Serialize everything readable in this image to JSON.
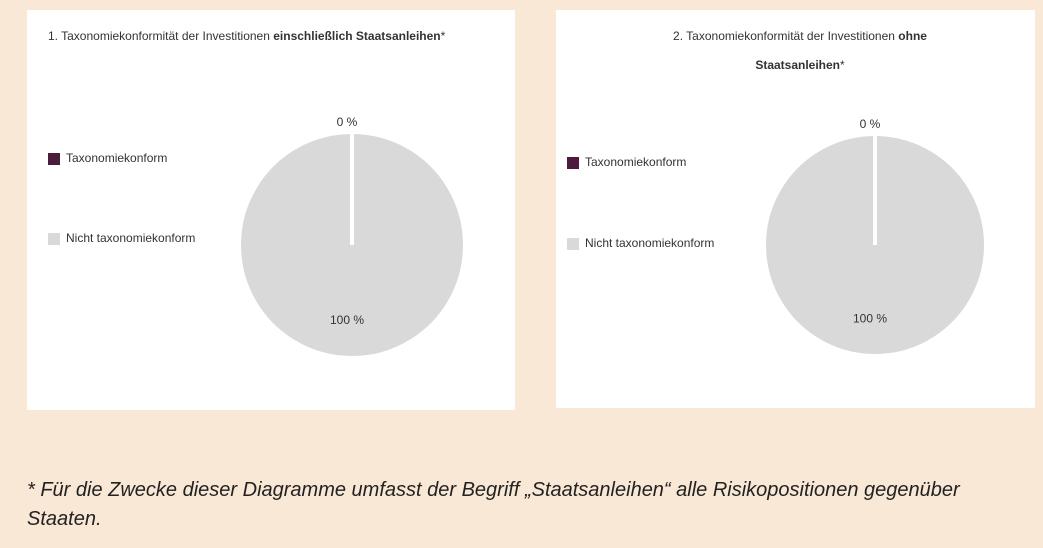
{
  "chart_data": [
    {
      "type": "pie",
      "title": [
        {
          "text": "1. Taxonomiekonformität der Investitionen ",
          "bold": false
        },
        {
          "text": "einschließlich Staatsanleihen",
          "bold": true
        },
        {
          "text": "*",
          "bold": false
        }
      ],
      "categories": [
        "Taxonomiekonform",
        "Nicht taxonomiekonform"
      ],
      "values": [
        0,
        100
      ],
      "value_labels": [
        "0 %",
        "100 %"
      ],
      "colors": [
        "#4b1c3c",
        "#d9d9d9"
      ]
    },
    {
      "type": "pie",
      "title": [
        {
          "text": "2. Taxonomiekonformität der Investitionen ",
          "bold": false
        },
        {
          "text": "ohne",
          "bold": true
        },
        {
          "text": "Staatsanleihen",
          "bold": true
        },
        {
          "text": "*",
          "bold": false
        }
      ],
      "categories": [
        "Taxonomiekonform",
        "Nicht taxonomiekonform"
      ],
      "values": [
        0,
        100
      ],
      "value_labels": [
        "0 %",
        "100 %"
      ],
      "colors": [
        "#4b1c3c",
        "#d9d9d9"
      ]
    }
  ],
  "footnote": "* Für die Zwecke dieser Diagramme umfasst der Begriff „Staatsanleihen“ alle Risikopositionen gegenüber Staaten."
}
